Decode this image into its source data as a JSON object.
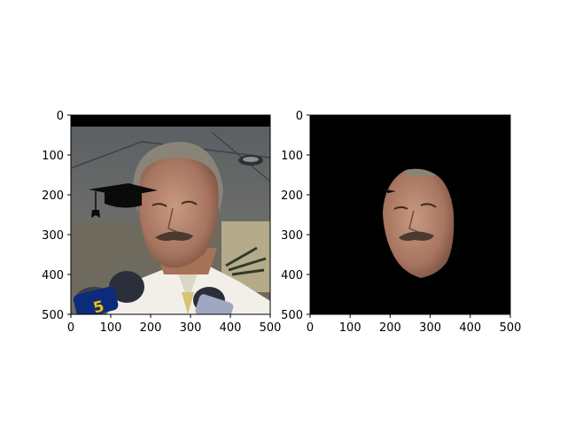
{
  "figure": {
    "description_free": true
  },
  "chart_data": [
    {
      "type": "image",
      "panel": "left",
      "title": "",
      "xlabel": "",
      "ylabel": "",
      "xlim": [
        0,
        500
      ],
      "ylim": [
        500,
        0
      ],
      "xticks": [
        0,
        100,
        200,
        300,
        400,
        500
      ],
      "yticks": [
        0,
        100,
        200,
        300,
        400,
        500
      ],
      "xtick_labels": [
        "0",
        "100",
        "200",
        "300",
        "400",
        "500"
      ],
      "ytick_labels": [
        "0",
        "100",
        "200",
        "300",
        "400",
        "500"
      ],
      "image_content": "photo-with-graduation-cap-overlay",
      "caption_text": "5"
    },
    {
      "type": "image",
      "panel": "right",
      "title": "",
      "xlabel": "",
      "ylabel": "",
      "xlim": [
        0,
        500
      ],
      "ylim": [
        500,
        0
      ],
      "xticks": [
        0,
        100,
        200,
        300,
        400,
        500
      ],
      "yticks": [
        0,
        100,
        200,
        300,
        400,
        500
      ],
      "xtick_labels": [
        "0",
        "100",
        "200",
        "300",
        "400",
        "500"
      ],
      "ytick_labels": [
        "0",
        "100",
        "200",
        "300",
        "400",
        "500"
      ],
      "image_content": "face-mask-on-black-background"
    }
  ],
  "colors": {
    "axes": "#000000",
    "background": "#ffffff",
    "mask_background": "#000000",
    "skin": "#b98a70",
    "hair": "#8a8478",
    "mustache": "#4a3a30",
    "shirt": "#f1efe8",
    "ceiling": "#6b6e70",
    "microphone": "#2b2f3a",
    "mic_label": "#0c2b7a",
    "mic_label_text": "#f2c200"
  }
}
